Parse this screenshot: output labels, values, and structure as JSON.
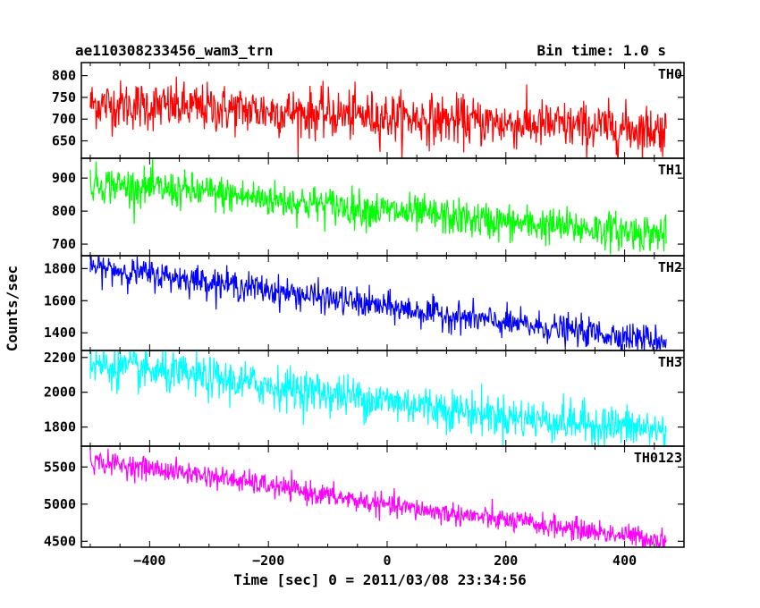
{
  "header": {
    "title": "ae110308233456_wam3_trn",
    "bin_time": "Bin time: 1.0 s"
  },
  "chart_data": {
    "type": "line",
    "title": "ae110308233456_wam3_trn",
    "subtitle": "Bin time: 1.0 s",
    "xlabel": "Time [sec] 0 = 2011/03/08 23:34:56",
    "ylabel": "Counts/sec",
    "xlim": [
      -515,
      500
    ],
    "x_ticks": [
      -400,
      -200,
      0,
      200,
      400
    ],
    "x_range": [
      -500,
      470
    ],
    "grid": false,
    "panels": [
      {
        "name": "TH0",
        "color": "#ff0000",
        "ylim": [
          610,
          830
        ],
        "yticks": [
          650,
          700,
          750,
          800
        ],
        "trend": [
          [
            -500,
            735
          ],
          [
            -300,
            725
          ],
          [
            0,
            705
          ],
          [
            200,
            690
          ],
          [
            470,
            675
          ]
        ],
        "noise_sd": 28
      },
      {
        "name": "TH1",
        "color": "#00ff00",
        "ylim": [
          665,
          960
        ],
        "yticks": [
          700,
          800,
          900
        ],
        "trend": [
          [
            -500,
            885
          ],
          [
            -300,
            855
          ],
          [
            0,
            800
          ],
          [
            200,
            765
          ],
          [
            470,
            730
          ]
        ],
        "noise_sd": 28
      },
      {
        "name": "TH2",
        "color": "#0000ff",
        "ylim": [
          1290,
          1880
        ],
        "yticks": [
          1400,
          1600,
          1800
        ],
        "trend": [
          [
            -500,
            1810
          ],
          [
            -300,
            1720
          ],
          [
            0,
            1560
          ],
          [
            200,
            1460
          ],
          [
            470,
            1350
          ]
        ],
        "noise_sd": 45
      },
      {
        "name": "TH3",
        "color": "#00ffff",
        "ylim": [
          1690,
          2240
        ],
        "yticks": [
          1800,
          2000,
          2200
        ],
        "trend": [
          [
            -500,
            2160
          ],
          [
            -300,
            2080
          ],
          [
            0,
            1950
          ],
          [
            200,
            1860
          ],
          [
            470,
            1780
          ]
        ],
        "noise_sd": 60
      },
      {
        "name": "TH0123",
        "color": "#ff00ff",
        "ylim": [
          4420,
          5780
        ],
        "yticks": [
          4500,
          5000,
          5500
        ],
        "trend": [
          [
            -500,
            5580
          ],
          [
            -300,
            5380
          ],
          [
            0,
            4980
          ],
          [
            200,
            4780
          ],
          [
            470,
            4510
          ]
        ],
        "noise_sd": 75
      }
    ]
  }
}
